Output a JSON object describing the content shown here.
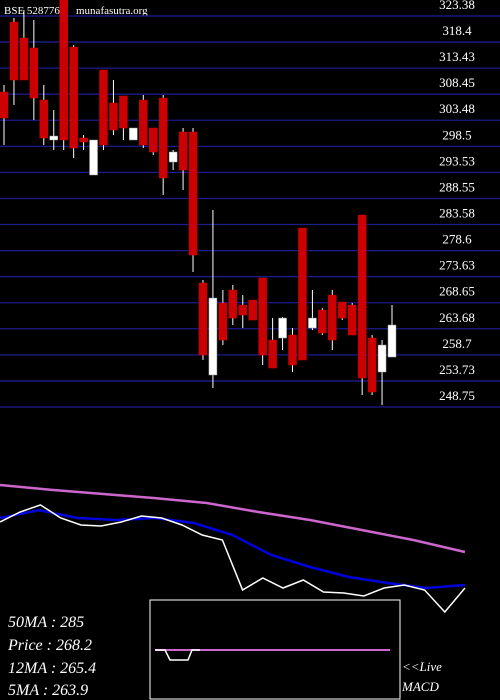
{
  "chart_data": {
    "type": "candlestick",
    "title": "BSE 528776",
    "watermark": "munafasutra.org",
    "categories": [
      null,
      null,
      null,
      null,
      null,
      null,
      null,
      null,
      null,
      null,
      null,
      null,
      null,
      null,
      null,
      null,
      null,
      null,
      null,
      null,
      null,
      null,
      null,
      null,
      null,
      null,
      null,
      null,
      null,
      null,
      null,
      null,
      null,
      null,
      null,
      null,
      null,
      null,
      null,
      null
    ],
    "open": [
      308.87,
      322.23,
      319.18,
      317.27,
      307.34,
      299.71,
      326.43,
      317.46,
      300.09,
      293.03,
      313.07,
      306.77,
      308.11,
      299.71,
      307.34,
      302.0,
      307.72,
      295.51,
      301.24,
      301.24,
      272.41,
      254.86,
      268.6,
      271.08,
      268.21,
      269.17,
      273.37,
      261.53,
      261.92,
      262.49,
      282.91,
      263.83,
      267.26,
      270.12,
      268.79,
      268.21,
      285.39,
      261.92,
      255.43,
      258.29
    ],
    "high": [
      310.21,
      322.99,
      324.52,
      322.61,
      310.21,
      305.43,
      326.43,
      317.84,
      300.66,
      299.71,
      313.07,
      311.16,
      308.11,
      302.0,
      308.3,
      302.0,
      308.3,
      297.8,
      302.0,
      302.0,
      272.99,
      286.35,
      271.08,
      272.03,
      270.12,
      269.17,
      273.37,
      265.73,
      265.92,
      263.83,
      282.91,
      271.08,
      267.64,
      271.08,
      268.79,
      268.6,
      285.39,
      262.49,
      261.53,
      268.21
    ],
    "low": [
      298.75,
      306.39,
      311.16,
      303.53,
      298.75,
      297.8,
      297.8,
      296.27,
      297.8,
      293.03,
      297.8,
      300.66,
      299.71,
      299.71,
      298.18,
      296.85,
      289.21,
      293.98,
      290.16,
      274.51,
      257.72,
      252.37,
      260.58,
      264.4,
      263.83,
      265.35,
      256.77,
      256.19,
      259.63,
      255.43,
      257.72,
      263.44,
      262.49,
      259.63,
      265.35,
      262.49,
      251.04,
      251.04,
      249.13,
      258.29
    ],
    "close": [
      303.91,
      311.16,
      311.16,
      307.72,
      300.09,
      300.47,
      299.71,
      298.18,
      299.33,
      299.71,
      298.75,
      301.62,
      302.0,
      302.0,
      298.75,
      297.42,
      292.46,
      297.42,
      293.98,
      277.76,
      258.67,
      269.55,
      261.53,
      265.73,
      266.31,
      265.35,
      258.67,
      256.19,
      265.73,
      256.77,
      257.72,
      265.73,
      262.87,
      261.53,
      265.73,
      262.49,
      254.28,
      251.61,
      260.58,
      264.4
    ],
    "up_color": "#ffffff",
    "down_color": "#cc0000",
    "grid": true,
    "grid_color": "#1c1c8c",
    "ylim": [
      248.18,
      326.43
    ],
    "yticks": [
      323.38,
      318.4,
      313.43,
      308.45,
      303.48,
      298.5,
      293.53,
      288.55,
      283.58,
      278.6,
      273.63,
      268.65,
      263.68,
      258.7,
      253.73,
      248.75
    ],
    "indicators": {
      "ylim": [
        0,
        100
      ],
      "series": [
        {
          "color": "#cc66cc",
          "values": [
            90,
            86.7,
            84,
            81.3,
            78,
            72,
            66.7,
            60,
            53.3,
            45.3
          ]
        },
        {
          "color": "#0000dd",
          "values": [
            68,
            73.3,
            68,
            66.7,
            68,
            64.7,
            56.7,
            43.3,
            35.3,
            28.7,
            24.7,
            21.3,
            23.3
          ]
        },
        {
          "color": "#ffffff",
          "values": [
            65.3,
            72,
            76.7,
            68,
            63.3,
            62.7,
            65.3,
            69.3,
            68,
            63.3,
            56.7,
            53.3,
            20,
            28,
            21.3,
            26.7,
            18.7,
            18,
            16,
            21.3,
            23.3,
            20,
            5.3,
            21.3
          ]
        }
      ]
    },
    "stats": [
      "50MA : 285",
      "Price  : 268.2",
      "12MA : 265.4",
      "5MA : 263.9"
    ],
    "macd_label": [
      "<<Live",
      "MACD"
    ]
  }
}
